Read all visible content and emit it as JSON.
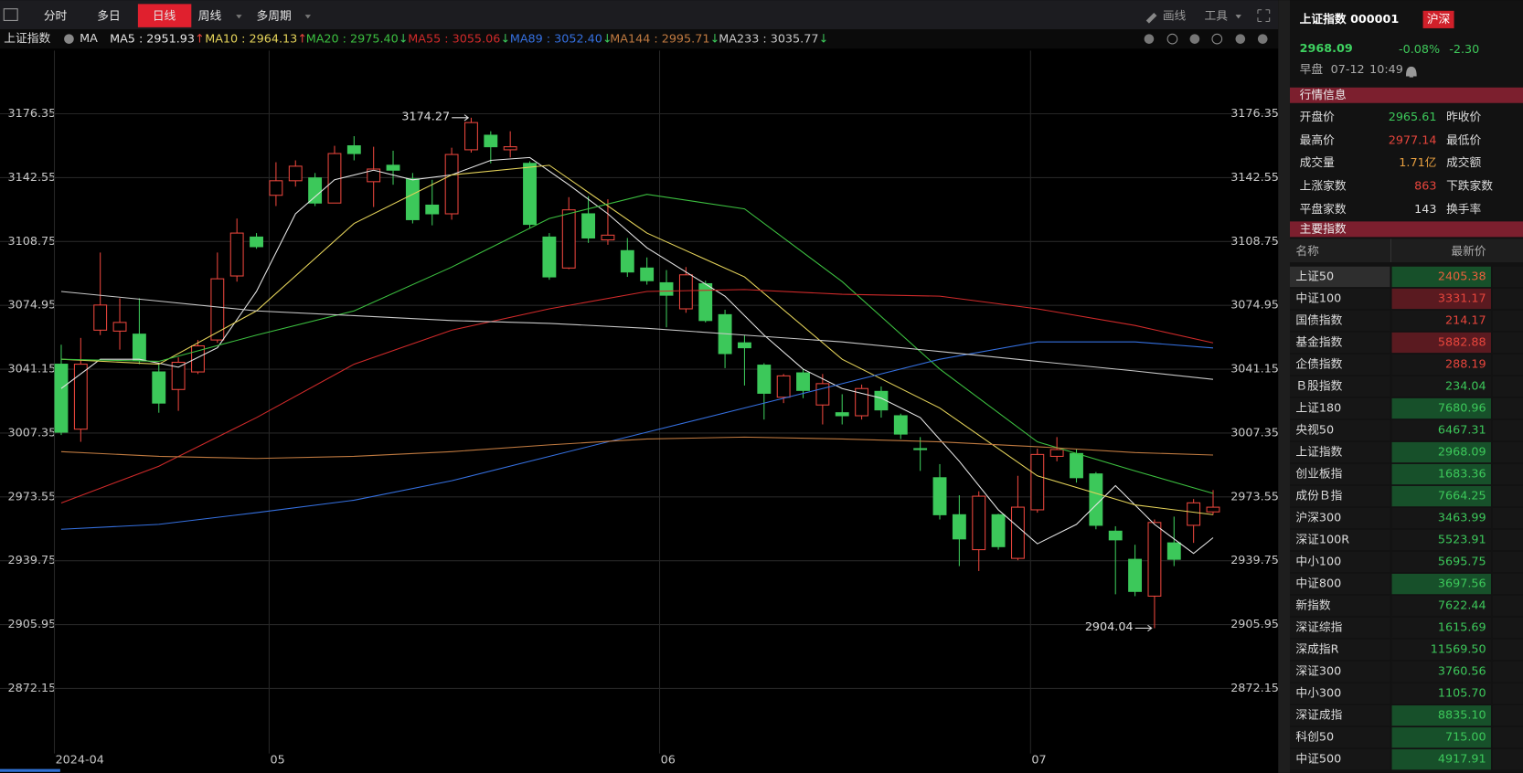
{
  "toolbar": {
    "tabs": [
      "分时",
      "多日",
      "日线",
      "周线",
      "多周期"
    ],
    "active": 2,
    "tools": [
      "画线",
      "工具"
    ]
  },
  "indicator_bar": {
    "symbol": "上证指数",
    "indicator": "MA"
  },
  "chart_data": {
    "type": "candlestick",
    "candles": {
      "open": [
        3043.8,
        3009.4,
        3061.8,
        3061.3,
        3059.7,
        3039.7,
        3030.4,
        3039.7,
        3056.6,
        3090.5,
        3111.1,
        3133.2,
        3140.9,
        3142.4,
        3129.1,
        3159.4,
        3140.4,
        3149.1,
        3141.9,
        3128.0,
        3123.4,
        3157.3,
        3165.0,
        3157.3,
        3150.1,
        3111.1,
        3094.7,
        3123.4,
        3109.6,
        3103.9,
        3094.7,
        3086.9,
        3073.1,
        3086.4,
        3070.0,
        3055.1,
        3043.3,
        3026.3,
        3039.2,
        3022.2,
        3018.1,
        3016.5,
        3029.4,
        3016.5,
        2999.1,
        2983.7,
        2964.1,
        2945.6,
        2964.1,
        2941.0,
        2966.7,
        2995.0,
        2996.5,
        2985.7,
        2955.4,
        2940.5,
        2921.0,
        2949.2,
        2958.5,
        2965.61
      ],
      "high": [
        3054.1,
        3057.7,
        3102.9,
        3078.7,
        3078.7,
        3043.8,
        3047.4,
        3056.6,
        3102.9,
        3120.9,
        3113.2,
        3150.7,
        3151.7,
        3145.0,
        3159.4,
        3164.5,
        3158.9,
        3156.8,
        3145.0,
        3141.4,
        3158.4,
        3174.27,
        3167.1,
        3167.1,
        3151.2,
        3113.2,
        3132.2,
        3132.7,
        3131.1,
        3110.6,
        3100.3,
        3093.6,
        3095.2,
        3088.0,
        3072.6,
        3059.2,
        3044.3,
        3038.6,
        3041.2,
        3038.6,
        3027.9,
        3033.0,
        3032.0,
        3017.6,
        3005.2,
        2990.9,
        2974.4,
        2976.5,
        2964.6,
        2984.7,
        2999.1,
        3005.2,
        2999.1,
        2986.7,
        2958.0,
        2948.2,
        2961.6,
        2963.1,
        2972.4,
        2977.14
      ],
      "low": [
        3006.3,
        3002.7,
        3059.2,
        3051.5,
        3043.8,
        3018.1,
        3019.1,
        3038.6,
        3055.1,
        3087.5,
        3104.9,
        3127.5,
        3137.8,
        3127.5,
        3129.1,
        3151.7,
        3127.0,
        3138.8,
        3118.3,
        3117.3,
        3120.3,
        3155.8,
        3150.1,
        3153.2,
        3115.7,
        3088.5,
        3094.1,
        3108.0,
        3107.0,
        3090.0,
        3085.9,
        3063.3,
        3071.0,
        3065.9,
        3041.7,
        3032.5,
        3014.5,
        3023.2,
        3025.8,
        3011.9,
        3011.9,
        3014.5,
        3015.5,
        3004.2,
        2987.3,
        2961.6,
        2936.9,
        2934.3,
        2945.6,
        2940.0,
        2965.2,
        2992.4,
        2981.1,
        2956.4,
        2922.0,
        2921.0,
        2904.04,
        2936.9,
        2949.2,
        2964.0
      ],
      "close": [
        3007.8,
        3043.8,
        3075.1,
        3065.9,
        3045.8,
        3023.2,
        3044.8,
        3053.5,
        3089.0,
        3113.2,
        3106.0,
        3140.9,
        3148.6,
        3129.1,
        3155.3,
        3155.3,
        3147.1,
        3146.5,
        3120.3,
        3123.4,
        3154.8,
        3171.7,
        3158.9,
        3158.9,
        3117.8,
        3090.0,
        3125.5,
        3110.6,
        3112.1,
        3092.6,
        3088.0,
        3080.3,
        3091.1,
        3066.9,
        3049.4,
        3052.5,
        3028.4,
        3037.6,
        3029.9,
        3033.5,
        3016.5,
        3030.9,
        3019.6,
        3006.8,
        2998.6,
        2964.1,
        2951.3,
        2973.9,
        2947.2,
        2968.1,
        2996.0,
        2998.6,
        2983.7,
        2958.5,
        2950.8,
        2923.5,
        2960.0,
        2940.5,
        2970.39,
        2968.09
      ]
    },
    "up_color": "#e8453c",
    "down_color": "#3cc85a",
    "ylim": [
      2840.8,
      3209.8
    ],
    "yticks": [
      3176.35,
      3142.55,
      3108.75,
      3074.95,
      3041.15,
      3007.35,
      2973.55,
      2939.75,
      2905.95,
      2872.15
    ],
    "xlim": [
      -0.35,
      59.65
    ],
    "xticks": [
      {
        "value": 0,
        "label": "2024-04"
      },
      {
        "value": 11,
        "label": "05"
      },
      {
        "value": 31,
        "label": "06"
      },
      {
        "value": 50,
        "label": "07"
      }
    ],
    "grid": true,
    "series": [
      {
        "name": "MA5",
        "color": "#e6e6e6",
        "legend_text": "MA5 : 2951.93",
        "arrow": "↑",
        "x": [
          0,
          2,
          4,
          6,
          8,
          10,
          12,
          14,
          16,
          18,
          20,
          22,
          24,
          26,
          28,
          30,
          32,
          34,
          36,
          38,
          40,
          42,
          44,
          46,
          48,
          50,
          52,
          54,
          56,
          58,
          59
        ],
        "values": [
          3030.9,
          3046.4,
          3046.4,
          3042.2,
          3052.5,
          3082.3,
          3123.4,
          3141.4,
          3146.5,
          3141.4,
          3144.0,
          3151.7,
          3153.2,
          3138.8,
          3123.4,
          3105.4,
          3092.6,
          3079.8,
          3059.2,
          3041.2,
          3030.9,
          3025.8,
          3015.5,
          2992.4,
          2966.7,
          2948.7,
          2959.0,
          2979.5,
          2959.0,
          2943.6,
          2951.93
        ]
      },
      {
        "name": "MA10",
        "color": "#e6d45a",
        "legend_text": "MA10 : 2964.13",
        "arrow": "↑",
        "x": [
          0,
          5,
          10,
          15,
          20,
          25,
          30,
          35,
          40,
          45,
          50,
          55,
          59
        ],
        "values": [
          3046.4,
          3043.8,
          3072.0,
          3118.3,
          3144.0,
          3149.1,
          3113.2,
          3090.0,
          3046.4,
          3020.6,
          2984.7,
          2969.3,
          2964.13
        ]
      },
      {
        "name": "MA20",
        "color": "#3cc040",
        "legend_text": "MA20 : 2975.40",
        "arrow": "↓",
        "x": [
          0,
          5,
          10,
          15,
          20,
          25,
          30,
          35,
          40,
          45,
          50,
          55,
          59
        ],
        "values": [
          3046.4,
          3045.3,
          3059.2,
          3072.0,
          3095.2,
          3120.9,
          3133.7,
          3126.0,
          3087.5,
          3041.2,
          3002.7,
          2987.3,
          2975.4
        ]
      },
      {
        "name": "MA55",
        "color": "#d02a2a",
        "legend_text": "MA55 : 3055.06",
        "arrow": "↓",
        "x": [
          0,
          5,
          10,
          15,
          20,
          25,
          30,
          35,
          40,
          45,
          50,
          55,
          59
        ],
        "values": [
          2970.3,
          2989.8,
          3015.5,
          3043.8,
          3061.8,
          3073.1,
          3082.3,
          3083.3,
          3080.8,
          3079.8,
          3073.1,
          3064.3,
          3055.06
        ]
      },
      {
        "name": "MA89",
        "color": "#3570e0",
        "legend_text": "MA89 : 3052.40",
        "arrow": "↓",
        "x": [
          0,
          5,
          10,
          15,
          20,
          25,
          30,
          35,
          40,
          45,
          50,
          55,
          59
        ],
        "values": [
          2956.4,
          2959.0,
          2965.2,
          2971.8,
          2982.1,
          2995.0,
          3007.8,
          3020.6,
          3033.5,
          3046.4,
          3055.6,
          3055.6,
          3052.4
        ]
      },
      {
        "name": "MA144",
        "color": "#c07a40",
        "legend_text": "MA144 : 2995.71",
        "arrow": "↓",
        "x": [
          0,
          5,
          10,
          15,
          20,
          25,
          30,
          35,
          40,
          45,
          50,
          55,
          59
        ],
        "values": [
          2997.5,
          2995.0,
          2993.9,
          2995.0,
          2997.5,
          3001.1,
          3004.2,
          3005.2,
          3004.2,
          3002.7,
          3000.1,
          2997.0,
          2995.71
        ]
      },
      {
        "name": "MA233",
        "color": "#c8c8c8",
        "legend_text": "MA233 : 3035.77",
        "arrow": "↓",
        "x": [
          0,
          5,
          10,
          15,
          20,
          25,
          30,
          35,
          40,
          45,
          50,
          55,
          59
        ],
        "values": [
          3082.3,
          3077.2,
          3072.0,
          3069.5,
          3066.9,
          3065.4,
          3062.8,
          3059.2,
          3055.6,
          3050.5,
          3045.3,
          3040.2,
          3035.77
        ]
      }
    ]
  },
  "quote": {
    "name": "上证指数 000001",
    "badge": "沪深",
    "price": "2968.09",
    "change_pct": "-0.08%",
    "change": "-2.30",
    "session": "早盘",
    "date": "07-12",
    "time": "10:49"
  },
  "market_info": {
    "title": "行情信息",
    "rows": [
      {
        "label": "开盘价",
        "value": "2965.61",
        "color": "#3cc85a",
        "label2": "昨收价"
      },
      {
        "label": "最高价",
        "value": "2977.14",
        "color": "#e8453c",
        "label2": "最低价"
      },
      {
        "label": "成交量",
        "value": "1.71亿",
        "color": "#e8a040",
        "label2": "成交额"
      },
      {
        "label": "上涨家数",
        "value": "863",
        "color": "#e8453c",
        "label2": "下跌家数"
      },
      {
        "label": "平盘家数",
        "value": "143",
        "color": "#dddddd",
        "label2": "换手率"
      }
    ]
  },
  "indices": {
    "title": "主要指数",
    "columns": [
      "名称",
      "最新价"
    ],
    "rows": [
      {
        "name": "上证50",
        "value": "2405.38",
        "color": "#e8603c",
        "background": "#17502a",
        "selected": true
      },
      {
        "name": "中证100",
        "value": "3331.17",
        "color": "#e8453c",
        "background": "#5a1a20"
      },
      {
        "name": "国债指数",
        "value": "214.17",
        "color": "#e8453c"
      },
      {
        "name": "基金指数",
        "value": "5882.88",
        "color": "#e8453c",
        "background": "#5a1a20"
      },
      {
        "name": "企债指数",
        "value": "288.19",
        "color": "#e8453c"
      },
      {
        "name": "Ｂ股指数",
        "value": "234.04",
        "color": "#3cc85a"
      },
      {
        "name": "上证180",
        "value": "7680.96",
        "color": "#3cc85a",
        "background": "#17502a"
      },
      {
        "name": "央视50",
        "value": "6467.31",
        "color": "#3cc85a"
      },
      {
        "name": "上证指数",
        "value": "2968.09",
        "color": "#3cc85a",
        "background": "#17502a"
      },
      {
        "name": "创业板指",
        "value": "1683.36",
        "color": "#3cc85a",
        "background": "#17502a"
      },
      {
        "name": "成份Ｂ指",
        "value": "7664.25",
        "color": "#3cc85a",
        "background": "#17502a"
      },
      {
        "name": "沪深300",
        "value": "3463.99",
        "color": "#3cc85a"
      },
      {
        "name": "深证100R",
        "value": "5523.91",
        "color": "#3cc85a"
      },
      {
        "name": "中小100",
        "value": "5695.75",
        "color": "#3cc85a"
      },
      {
        "name": "中证800",
        "value": "3697.56",
        "color": "#3cc85a",
        "background": "#17502a"
      },
      {
        "name": "新指数",
        "value": "7622.44",
        "color": "#3cc85a"
      },
      {
        "name": "深证综指",
        "value": "1615.69",
        "color": "#3cc85a"
      },
      {
        "name": "深成指R",
        "value": "11569.50",
        "color": "#3cc85a"
      },
      {
        "name": "深证300",
        "value": "3760.56",
        "color": "#3cc85a"
      },
      {
        "name": "中小300",
        "value": "1105.70",
        "color": "#3cc85a"
      },
      {
        "name": "深证成指",
        "value": "8835.10",
        "color": "#3cc85a",
        "background": "#17502a"
      },
      {
        "name": "科创50",
        "value": "715.00",
        "color": "#3cc85a",
        "background": "#17502a"
      },
      {
        "name": "中证500",
        "value": "4917.91",
        "color": "#3cc85a",
        "background": "#17502a"
      }
    ]
  }
}
